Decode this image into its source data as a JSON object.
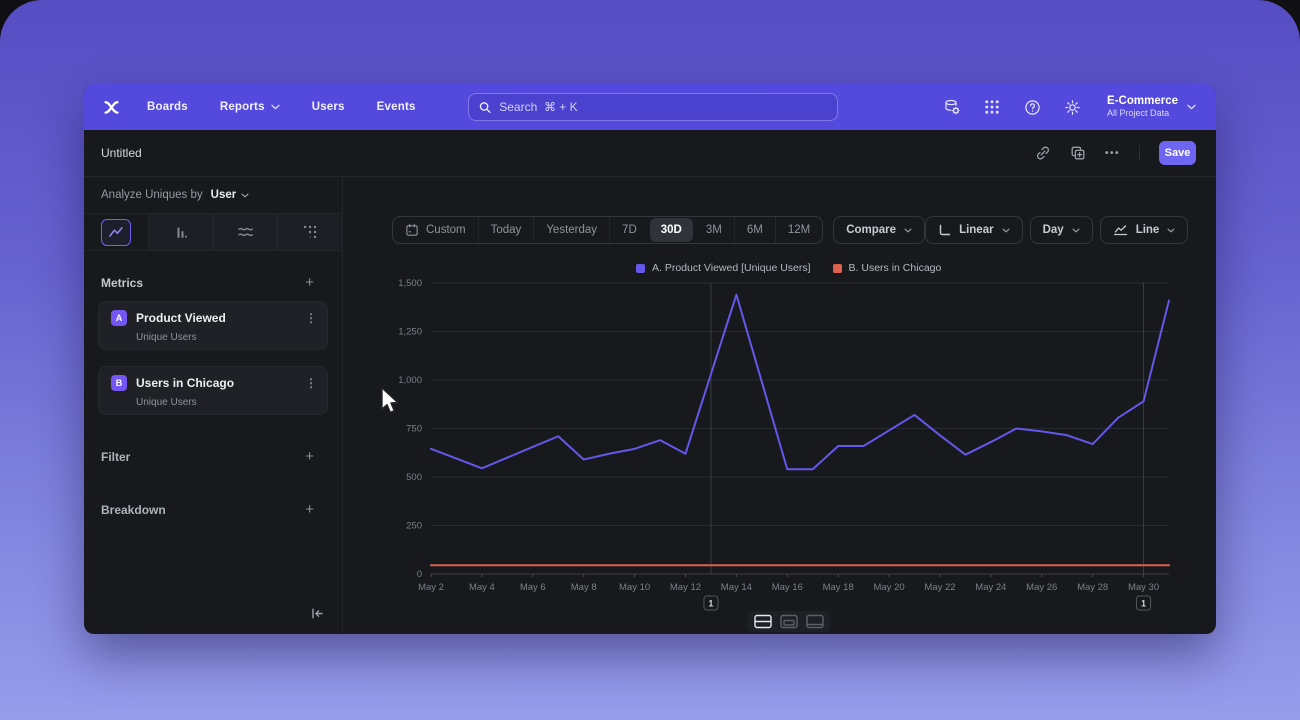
{
  "nav": {
    "items": [
      "Boards",
      "Reports",
      "Users",
      "Events"
    ],
    "search_placeholder": "Search  ⌘ + K",
    "project_name": "E-Commerce",
    "project_subtitle": "All Project Data"
  },
  "header": {
    "title": "Untitled",
    "save_label": "Save"
  },
  "sidebar": {
    "analyze_prefix": "Analyze Uniques by",
    "analyze_value": "User",
    "metrics_title": "Metrics",
    "metrics": [
      {
        "badge": "A",
        "name": "Product Viewed",
        "subtitle": "Unique Users"
      },
      {
        "badge": "B",
        "name": "Users in Chicago",
        "subtitle": "Unique Users"
      }
    ],
    "filter_title": "Filter",
    "breakdown_title": "Breakdown"
  },
  "controls": {
    "ranges": [
      "Custom",
      "Today",
      "Yesterday",
      "7D",
      "30D",
      "3M",
      "6M",
      "12M"
    ],
    "selected_range": "30D",
    "compare": "Compare",
    "scale": "Linear",
    "interval": "Day",
    "chart_type": "Line"
  },
  "icons": {
    "plus": "+",
    "more_h": "•••",
    "more_v": "⋮"
  },
  "chart_data": {
    "type": "line",
    "x": [
      "May 2",
      "May 3",
      "May 4",
      "May 5",
      "May 6",
      "May 7",
      "May 8",
      "May 9",
      "May 10",
      "May 11",
      "May 12",
      "May 13",
      "May 14",
      "May 15",
      "May 16",
      "May 17",
      "May 18",
      "May 19",
      "May 20",
      "May 21",
      "May 22",
      "May 23",
      "May 24",
      "May 25",
      "May 26",
      "May 27",
      "May 28",
      "May 29",
      "May 30",
      "May 31"
    ],
    "x_tick_indices": [
      0,
      2,
      4,
      6,
      8,
      10,
      12,
      14,
      16,
      18,
      20,
      22,
      24,
      26,
      28
    ],
    "ylim": [
      0,
      1500
    ],
    "yticks": [
      0,
      250,
      500,
      750,
      1000,
      1250,
      1500
    ],
    "grid": true,
    "legend_position": "top",
    "series": [
      {
        "name": "A. Product Viewed [Unique Users]",
        "color": "#6358e9",
        "values": [
          645,
          595,
          545,
          600,
          655,
          710,
          590,
          620,
          645,
          690,
          620,
          1030,
          1440,
          990,
          540,
          540,
          660,
          660,
          740,
          820,
          715,
          615,
          680,
          750,
          735,
          715,
          670,
          805,
          890,
          1410
        ]
      },
      {
        "name": "B. Users in Chicago",
        "color": "#e0604f",
        "values": [
          45,
          45,
          45,
          45,
          45,
          45,
          45,
          45,
          45,
          45,
          45,
          45,
          45,
          45,
          45,
          45,
          45,
          45,
          45,
          45,
          45,
          45,
          45,
          45,
          45,
          45,
          45,
          45,
          45,
          45
        ]
      }
    ],
    "annotations": [
      {
        "index": 11,
        "x": "May 13",
        "label": "1"
      },
      {
        "index": 28,
        "x": "May 30",
        "label": "1"
      }
    ]
  }
}
